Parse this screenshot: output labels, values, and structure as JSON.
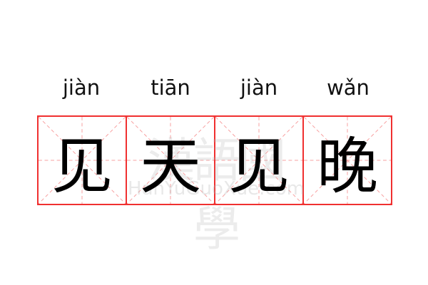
{
  "pinyin": [
    "jiàn",
    "tiān",
    "jiàn",
    "wǎn"
  ],
  "characters": [
    "见",
    "天",
    "见",
    "晚"
  ],
  "watermark": {
    "text": "漢語國學",
    "latin": "HanYuGuoXue.com"
  },
  "colors": {
    "grid": "#f03030",
    "guide": "#f7a0a0"
  }
}
